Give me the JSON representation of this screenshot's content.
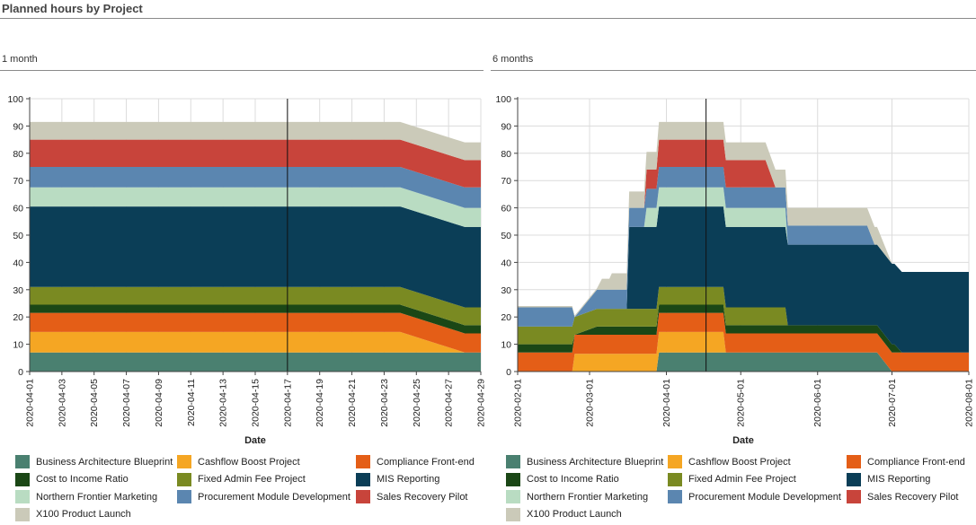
{
  "page": {
    "title": "Planned hours by Project"
  },
  "series_colors": {
    "Business Architecture Blueprint": "#4a8070",
    "Cashflow Boost Project": "#f5a623",
    "Compliance Front-end": "#e45e17",
    "Cost to Income Ratio": "#1b4716",
    "Fixed Admin Fee Project": "#7a8a22",
    "MIS Reporting": "#0b3e57",
    "Northern Frontier Marketing": "#b9dcc2",
    "Procurement Module Development": "#5b86b0",
    "Sales Recovery Pilot": "#c8443b",
    "X100 Product Launch": "#cbcab9"
  },
  "chart_data": [
    {
      "type": "area",
      "stacked": true,
      "panel_title": "1 month",
      "xlabel": "Date",
      "ylabel": "",
      "ylim": [
        0,
        100
      ],
      "yticks": [
        0,
        10,
        20,
        30,
        40,
        50,
        60,
        70,
        80,
        90,
        100
      ],
      "x_range": [
        "2020-04-01",
        "2020-04-29"
      ],
      "xticks": [
        "2020-04-01",
        "2020-04-03",
        "2020-04-05",
        "2020-04-07",
        "2020-04-09",
        "2020-04-11",
        "2020-04-13",
        "2020-04-15",
        "2020-04-17",
        "2020-04-19",
        "2020-04-21",
        "2020-04-23",
        "2020-04-25",
        "2020-04-27",
        "2020-04-29"
      ],
      "marker_date": "2020-04-17",
      "grid": true,
      "legend": "bottom",
      "x": [
        "2020-04-01",
        "2020-04-24",
        "2020-04-28",
        "2020-04-29"
      ],
      "series": [
        {
          "name": "Business Architecture Blueprint",
          "values": [
            7,
            7,
            7,
            7
          ]
        },
        {
          "name": "Cashflow Boost Project",
          "values": [
            7.5,
            7.5,
            0,
            0
          ]
        },
        {
          "name": "Compliance Front-end",
          "values": [
            7,
            7,
            7,
            7
          ]
        },
        {
          "name": "Cost to Income Ratio",
          "values": [
            3,
            3,
            3,
            3
          ]
        },
        {
          "name": "Fixed Admin Fee Project",
          "values": [
            6.5,
            6.5,
            6.5,
            6.5
          ]
        },
        {
          "name": "MIS Reporting",
          "values": [
            29.5,
            29.5,
            29.5,
            29.5
          ]
        },
        {
          "name": "Northern Frontier Marketing",
          "values": [
            7,
            7,
            7,
            7
          ]
        },
        {
          "name": "Procurement Module Development",
          "values": [
            7.5,
            7.5,
            7.5,
            7.5
          ]
        },
        {
          "name": "Sales Recovery Pilot",
          "values": [
            10,
            10,
            10,
            10
          ]
        },
        {
          "name": "X100 Product Launch",
          "values": [
            6.5,
            6.5,
            6.5,
            6.5
          ]
        }
      ]
    },
    {
      "type": "area",
      "stacked": true,
      "panel_title": "6 months",
      "xlabel": "Date",
      "ylabel": "",
      "ylim": [
        0,
        100
      ],
      "yticks": [
        0,
        10,
        20,
        30,
        40,
        50,
        60,
        70,
        80,
        90,
        100
      ],
      "x_range": [
        "2020-02-01",
        "2020-08-01"
      ],
      "xticks": [
        "2020-02-01",
        "2020-03-01",
        "2020-04-01",
        "2020-05-01",
        "2020-06-01",
        "2020-07-01",
        "2020-08-01"
      ],
      "marker_date": "2020-04-17",
      "grid": true,
      "legend": "bottom",
      "x": [
        "2020-02-01",
        "2020-02-23",
        "2020-02-24",
        "2020-03-04",
        "2020-03-06",
        "2020-03-09",
        "2020-03-10",
        "2020-03-16",
        "2020-03-17",
        "2020-03-23",
        "2020-03-24",
        "2020-03-28",
        "2020-03-29",
        "2020-04-24",
        "2020-04-25",
        "2020-05-10",
        "2020-05-11",
        "2020-05-15",
        "2020-05-16",
        "2020-05-19",
        "2020-05-20",
        "2020-05-28",
        "2020-06-16",
        "2020-06-20",
        "2020-06-21",
        "2020-06-24",
        "2020-06-25",
        "2020-07-01",
        "2020-07-02",
        "2020-07-05",
        "2020-07-06",
        "2020-07-20",
        "2020-07-21",
        "2020-08-01"
      ],
      "series": [
        {
          "name": "Business Architecture Blueprint",
          "values": [
            0,
            0,
            0,
            0,
            0,
            0,
            0,
            0,
            0,
            0,
            0,
            0,
            7,
            7,
            7,
            7,
            7,
            7,
            7,
            7,
            7,
            7,
            7,
            7,
            7,
            7,
            7,
            0,
            0,
            0,
            0,
            0,
            0,
            0
          ]
        },
        {
          "name": "Cashflow Boost Project",
          "values": [
            0,
            0,
            6.5,
            6.5,
            6.5,
            6.5,
            6.5,
            6.5,
            6.5,
            6.5,
            6.5,
            6.5,
            7.5,
            7.5,
            0,
            0,
            0,
            0,
            0,
            0,
            0,
            0,
            0,
            0,
            0,
            0,
            0,
            0,
            0,
            0,
            0,
            0,
            0,
            0
          ]
        },
        {
          "name": "Compliance Front-end",
          "values": [
            7,
            7,
            7,
            7,
            7,
            7,
            7,
            7,
            7,
            7,
            7,
            7,
            7,
            7,
            7,
            7,
            7,
            7,
            7,
            7,
            7,
            7,
            7,
            7,
            7,
            7,
            7,
            7,
            7,
            7,
            7,
            7,
            7,
            7
          ]
        },
        {
          "name": "Cost to Income Ratio",
          "values": [
            3,
            3,
            0,
            3,
            3,
            3,
            3,
            3,
            3,
            3,
            3,
            3,
            3,
            3,
            3,
            3,
            3,
            3,
            3,
            3,
            3,
            3,
            3,
            3,
            3,
            3,
            3,
            3,
            3,
            0,
            0,
            0,
            0,
            0
          ]
        },
        {
          "name": "Fixed Admin Fee Project",
          "values": [
            6.5,
            6.5,
            6.5,
            6.5,
            6.5,
            6.5,
            6.5,
            6.5,
            6.5,
            6.5,
            6.5,
            6.5,
            6.5,
            6.5,
            6.5,
            6.5,
            6.5,
            6.5,
            6.5,
            6.5,
            0,
            0,
            0,
            0,
            0,
            0,
            0,
            0,
            0,
            0,
            0,
            0,
            0,
            0
          ]
        },
        {
          "name": "MIS Reporting",
          "values": [
            0,
            0,
            0,
            0,
            0,
            0,
            0,
            0,
            30,
            30,
            30,
            30,
            29.5,
            29.5,
            29.5,
            29.5,
            29.5,
            29.5,
            29.5,
            29.5,
            29.5,
            29.5,
            29.5,
            29.5,
            29.5,
            29.5,
            29.5,
            29.5,
            29.5,
            29.5,
            29.5,
            29.5,
            29.5,
            29.5
          ]
        },
        {
          "name": "Northern Frontier Marketing",
          "values": [
            0,
            0,
            0,
            0,
            0,
            0,
            0,
            0,
            0,
            0,
            7,
            7,
            7,
            7,
            7,
            7,
            7,
            7,
            7,
            7,
            0,
            0,
            0,
            0,
            0,
            0,
            0,
            0,
            0,
            0,
            0,
            0,
            0,
            0
          ]
        },
        {
          "name": "Procurement Module Development",
          "values": [
            7,
            7,
            0,
            7,
            7,
            7,
            7,
            7,
            7,
            7,
            7,
            7,
            7.5,
            7.5,
            7.5,
            7.5,
            7.5,
            7.5,
            7.5,
            7.5,
            7,
            7,
            7,
            7,
            7,
            0,
            0,
            0,
            0,
            0,
            0,
            0,
            0,
            0
          ]
        },
        {
          "name": "Sales Recovery Pilot",
          "values": [
            0,
            0,
            0,
            0,
            0,
            0,
            0,
            0,
            0,
            0,
            7,
            7,
            10,
            10,
            10,
            10,
            10,
            0,
            0,
            0,
            0,
            0,
            0,
            0,
            0,
            0,
            0,
            0,
            0,
            0,
            0,
            0,
            0,
            0
          ]
        },
        {
          "name": "X100 Product Launch",
          "values": [
            0.5,
            0.5,
            0.5,
            0.5,
            4,
            4,
            6,
            6,
            6,
            6,
            6.5,
            6.5,
            6.5,
            6.5,
            6.5,
            6.5,
            6.5,
            6.5,
            6.5,
            6.5,
            6.5,
            6.5,
            6.5,
            6.5,
            6.5,
            6.5,
            6.5,
            0,
            0,
            0,
            0,
            0,
            0,
            0
          ]
        }
      ]
    }
  ]
}
